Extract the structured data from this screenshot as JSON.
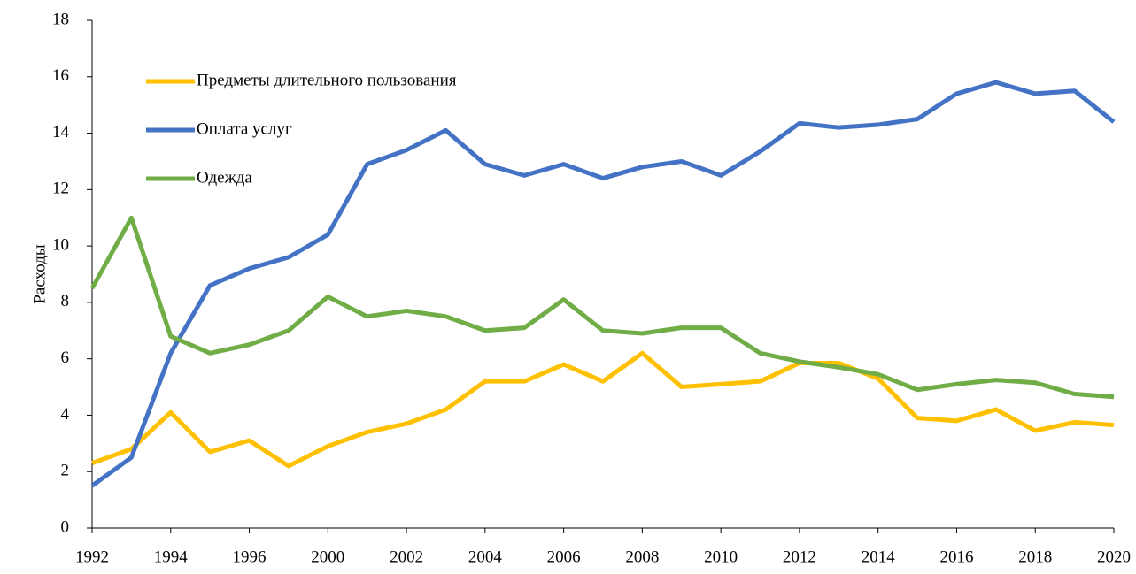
{
  "chart_data": {
    "type": "line",
    "y_label": "Расходы",
    "categories": [
      "1992",
      null,
      "1994",
      null,
      "1996",
      null,
      "2000",
      null,
      "2002",
      null,
      "2004",
      null,
      "2006",
      null,
      "2008",
      null,
      "2010",
      null,
      "2012",
      null,
      "2014",
      null,
      "2016",
      null,
      "2018",
      null,
      "2020"
    ],
    "series": [
      {
        "name": "Предметы длительного пользования",
        "color": "#ffc000",
        "values": [
          2.3,
          2.8,
          4.1,
          2.7,
          3.1,
          2.2,
          2.9,
          3.4,
          3.7,
          4.2,
          5.2,
          5.2,
          5.8,
          5.2,
          6.2,
          5.0,
          5.1,
          5.2,
          5.85,
          5.85,
          5.3,
          3.9,
          3.8,
          4.2,
          3.45,
          3.75,
          3.65
        ]
      },
      {
        "name": "Оплата услуг",
        "color": "#4472c4",
        "values": [
          1.5,
          2.5,
          6.2,
          8.6,
          9.2,
          9.6,
          10.4,
          12.9,
          13.4,
          14.1,
          12.9,
          12.5,
          12.9,
          12.4,
          12.8,
          13.0,
          12.5,
          13.35,
          14.35,
          14.2,
          14.3,
          14.5,
          15.4,
          15.8,
          15.4,
          15.5,
          14.4
        ]
      },
      {
        "name": "Одежда",
        "color": "#70ad47",
        "values": [
          8.5,
          11.0,
          6.8,
          6.2,
          6.5,
          7.0,
          8.2,
          7.5,
          7.7,
          7.5,
          7.0,
          7.1,
          8.1,
          7.0,
          6.9,
          7.1,
          7.1,
          6.2,
          5.9,
          5.7,
          5.45,
          4.9,
          5.1,
          5.25,
          5.15,
          4.75,
          4.65
        ]
      }
    ],
    "ylim": [
      0,
      18
    ],
    "yticks": [
      0,
      2,
      4,
      6,
      8,
      10,
      12,
      14,
      16,
      18
    ],
    "grid": false,
    "legend": "upper left"
  }
}
